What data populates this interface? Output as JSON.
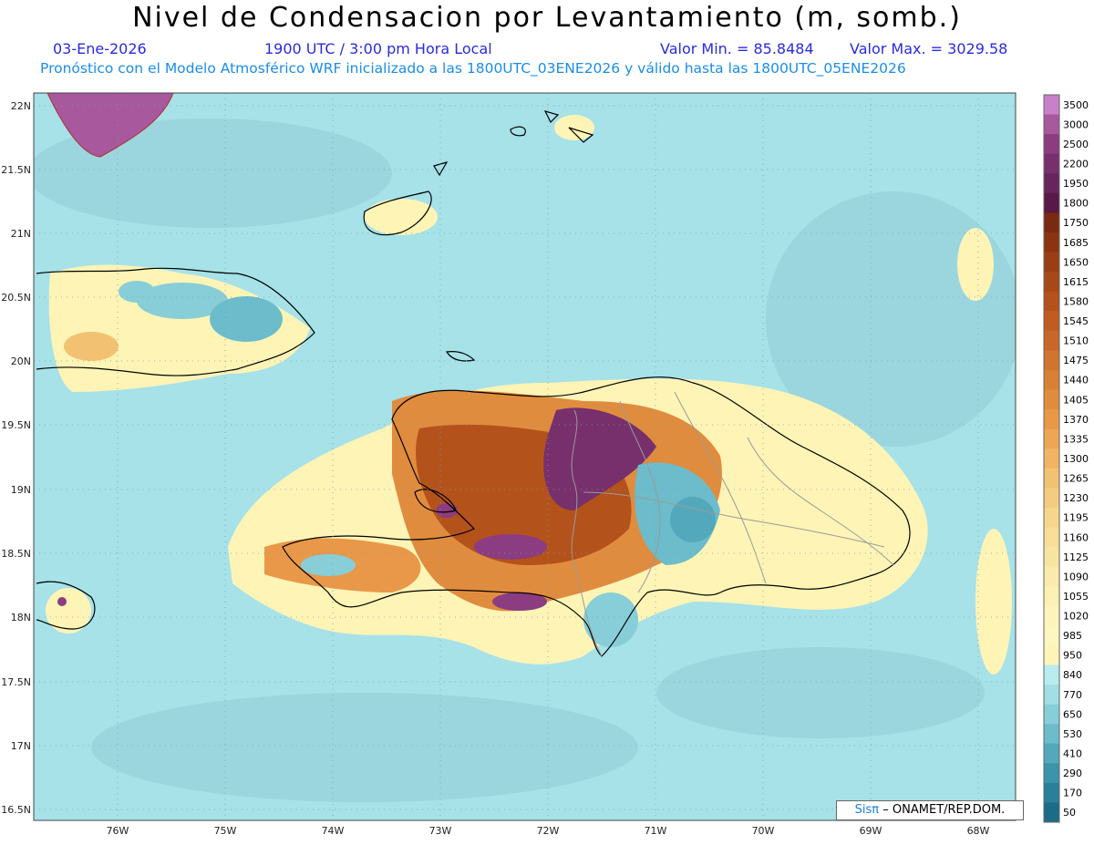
{
  "title": "Nivel de Condensacion por Levantamiento (m, somb.)",
  "date": "03-Ene-2026",
  "time": "1900 UTC / 3:00 pm Hora Local",
  "valor_min": "Valor Min. = 85.8484",
  "valor_max": "Valor Max. = 3029.58",
  "model_info": "Pronóstico con el Modelo Atmosférico WRF inicializado a las 1800UTC_03ENE2026 y válido hasta las  1800UTC_05ENE2026",
  "credit": {
    "brand": "Sisπ",
    "org": "– ONAMET/REP.DOM."
  },
  "lat_labels": [
    "22N",
    "21.5N",
    "21N",
    "20.5N",
    "20N",
    "19.5N",
    "19N",
    "18.5N",
    "18N",
    "17.5N",
    "17N",
    "16.5N"
  ],
  "lon_labels": [
    "76W",
    "75W",
    "74W",
    "73W",
    "72W",
    "71W",
    "70W",
    "69W",
    "68W"
  ],
  "colorbar": {
    "levels": [
      "3500",
      "3000",
      "2500",
      "2200",
      "1950",
      "1800",
      "1750",
      "1685",
      "1650",
      "1615",
      "1580",
      "1545",
      "1510",
      "1475",
      "1440",
      "1405",
      "1370",
      "1335",
      "1300",
      "1265",
      "1230",
      "1195",
      "1160",
      "1125",
      "1090",
      "1055",
      "1020",
      "985",
      "950",
      "840",
      "770",
      "650",
      "530",
      "410",
      "290",
      "170",
      "50"
    ],
    "colors": [
      "#c880c8",
      "#a8589c",
      "#8c3c80",
      "#78306c",
      "#68245c",
      "#581848",
      "#7a2a10",
      "#8a3412",
      "#9a3e16",
      "#a84818",
      "#b4521c",
      "#c05c20",
      "#c86828",
      "#d07430",
      "#d88036",
      "#e08c3e",
      "#e89848",
      "#eca656",
      "#f0b464",
      "#f2c272",
      "#f4cc80",
      "#f6d68c",
      "#f8de98",
      "#f8e4a2",
      "#faeaac",
      "#fcf0b4",
      "#fdf4bc",
      "#fef6c0",
      "#fff4b8",
      "#b8ecee",
      "#a2dfe4",
      "#88ced8",
      "#6cbccb",
      "#54a8bc",
      "#3c94ab",
      "#2a809a",
      "#1c6c88"
    ]
  }
}
